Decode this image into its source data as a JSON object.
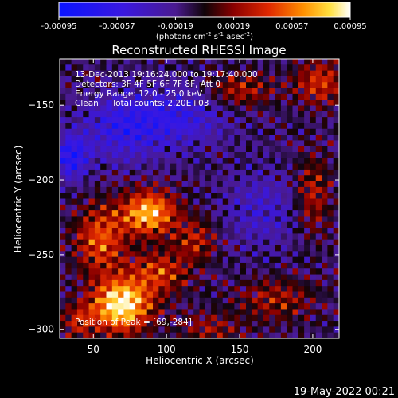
{
  "chart_data": {
    "type": "heatmap",
    "title": "Reconstructed RHESSI Image",
    "xlabel": "Heliocentric X (arcsec)",
    "ylabel": "Heliocentric Y (arcsec)",
    "xlim": [
      27,
      218
    ],
    "ylim": [
      -306,
      -119
    ],
    "x_ticks": [
      50,
      100,
      150,
      200
    ],
    "y_ticks": [
      -300,
      -250,
      -200,
      -150
    ],
    "colorbar": {
      "range": [
        -0.00095,
        0.00095
      ],
      "tick_values": [
        -0.00095,
        -0.00057,
        -0.00019,
        0.00019,
        0.00057,
        0.00095
      ],
      "tick_labels": [
        "-0.00095",
        "-0.00057",
        "-0.00019",
        "0.00019",
        "0.00057",
        "0.00095"
      ],
      "unit_label": "(photons cm",
      "unit_sup1": "-2",
      "unit_mid1": " s",
      "unit_sup2": "-1",
      "unit_mid2": " asec",
      "unit_sup3": "-2",
      "unit_end": ")"
    },
    "info": {
      "time": "13-Dec-2013 19:16:24.000 to 19:17:40.000",
      "detectors": "Detectors: 3F 4F 5F 6F 7F 8F, Att 0",
      "energy": "Energy Range: 12.0 - 25.0 keV",
      "clean": "Clean     Total counts: 2.20E+03"
    },
    "peak_label": "Position of Peak = [69,-284]",
    "peak": [
      69,
      -284
    ],
    "sources": [
      {
        "x": 69,
        "y": -284,
        "amp": 0.0011,
        "sx": 14,
        "sy": 12
      },
      {
        "x": 88,
        "y": -222,
        "amp": 0.0009,
        "sx": 13,
        "sy": 10
      },
      {
        "x": 55,
        "y": -240,
        "amp": 0.0006,
        "sx": 12,
        "sy": 16
      },
      {
        "x": 95,
        "y": -262,
        "amp": 0.0005,
        "sx": 14,
        "sy": 10
      },
      {
        "x": 120,
        "y": -240,
        "amp": 0.0004,
        "sx": 10,
        "sy": 10
      },
      {
        "x": 205,
        "y": -135,
        "amp": 0.0005,
        "sx": 12,
        "sy": 10
      },
      {
        "x": 150,
        "y": -140,
        "amp": 0.0004,
        "sx": 16,
        "sy": 8
      },
      {
        "x": 175,
        "y": -280,
        "amp": 0.00035,
        "sx": 18,
        "sy": 10
      },
      {
        "x": 200,
        "y": -210,
        "amp": 0.0004,
        "sx": 8,
        "sy": 18
      },
      {
        "x": 40,
        "y": -295,
        "amp": 0.0004,
        "sx": 8,
        "sy": 8
      },
      {
        "x": 130,
        "y": -300,
        "amp": 0.0003,
        "sx": 15,
        "sy": 8
      },
      {
        "x": 70,
        "y": -165,
        "amp": -0.00045,
        "sx": 20,
        "sy": 16
      },
      {
        "x": 110,
        "y": -158,
        "amp": -0.0004,
        "sx": 22,
        "sy": 14
      },
      {
        "x": 35,
        "y": -185,
        "amp": -0.0006,
        "sx": 8,
        "sy": 10
      },
      {
        "x": 165,
        "y": -220,
        "amp": -0.0003,
        "sx": 18,
        "sy": 18
      }
    ]
  },
  "footer": {
    "date": "19-May-2022 00:21"
  }
}
